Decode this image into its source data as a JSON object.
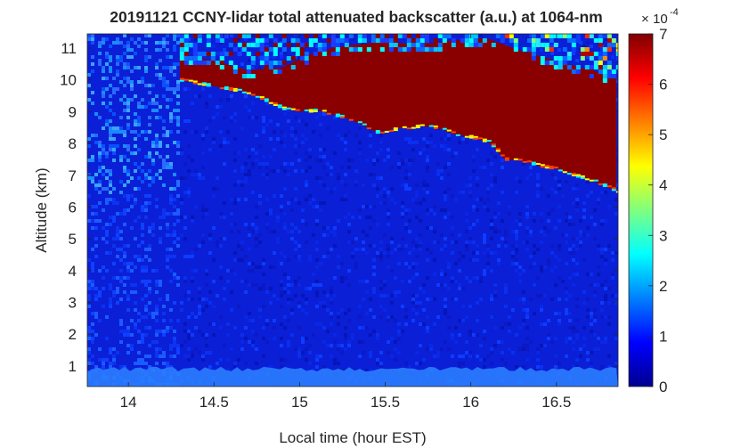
{
  "chart_data": {
    "type": "heatmap",
    "title": "20191121 CCNY-lidar total attenuated backscatter (a.u.) at 1064-nm",
    "xlabel": "Local time (hour EST)",
    "ylabel": "Altitude (km)",
    "xlim": [
      13.76,
      16.86
    ],
    "ylim": [
      0.35,
      11.45
    ],
    "xticks": [
      14,
      14.5,
      15,
      15.5,
      16,
      16.5
    ],
    "xtick_labels": [
      "14",
      "14.5",
      "15",
      "15.5",
      "16",
      "16.5"
    ],
    "yticks": [
      1,
      2,
      3,
      4,
      5,
      6,
      7,
      8,
      9,
      10,
      11
    ],
    "ytick_labels": [
      "1",
      "2",
      "3",
      "4",
      "5",
      "6",
      "7",
      "8",
      "9",
      "10",
      "11"
    ],
    "colorbar": {
      "colormap": "jet",
      "clim": [
        0,
        7
      ],
      "ticks": [
        0,
        1,
        2,
        3,
        4,
        5,
        6,
        7
      ],
      "tick_labels": [
        "0",
        "1",
        "2",
        "3",
        "4",
        "5",
        "6",
        "7"
      ],
      "scale_base": "10",
      "scale_exponent": "-4"
    },
    "cloud_base_km": {
      "x": [
        14.3,
        14.5,
        14.7,
        14.9,
        15.0,
        15.1,
        15.2,
        15.3,
        15.45,
        15.55,
        15.7,
        15.8,
        15.9,
        16.0,
        16.1,
        16.2,
        16.3,
        16.4,
        16.5,
        16.6,
        16.7,
        16.85
      ],
      "y": [
        10.0,
        9.8,
        9.6,
        9.1,
        9.0,
        9.05,
        8.9,
        8.75,
        8.35,
        8.45,
        8.55,
        8.5,
        8.3,
        8.2,
        8.05,
        7.5,
        7.45,
        7.3,
        7.2,
        7.0,
        6.85,
        6.5
      ]
    },
    "cloud_top_km": {
      "x": [
        14.3,
        14.5,
        14.7,
        14.9,
        15.1,
        15.3,
        15.5,
        15.7,
        15.9,
        16.1,
        16.3,
        16.5,
        16.7,
        16.85
      ],
      "y": [
        10.8,
        10.6,
        10.3,
        10.4,
        10.9,
        11.1,
        11.2,
        11.1,
        11.25,
        11.3,
        10.9,
        10.6,
        10.3,
        10.1
      ]
    },
    "near_surface_layer_top_km": 0.9
  }
}
